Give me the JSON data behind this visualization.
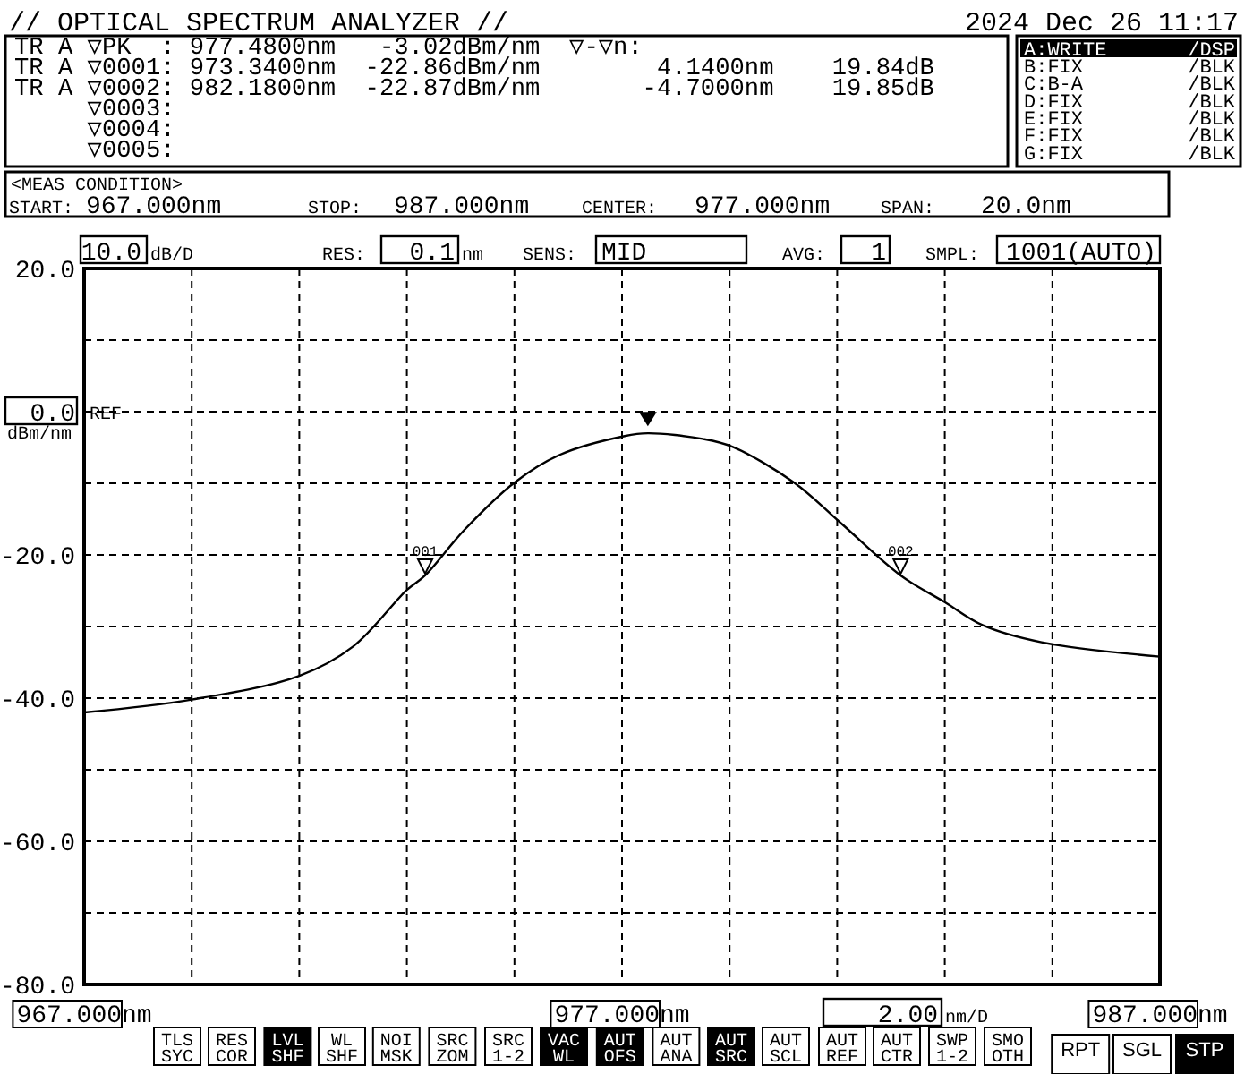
{
  "chart_data": {
    "type": "line",
    "title": "// OPTICAL SPECTRUM ANALYZER //",
    "ylabel": "dBm/nm",
    "x": [
      967,
      969,
      971,
      972,
      973,
      973.34,
      974.07,
      975,
      975.85,
      977.05,
      977.48,
      978.5,
      979.05,
      980.2,
      981.06,
      982.18,
      983,
      983.7,
      984.8,
      987
    ],
    "series": [
      {
        "color": "#000000",
        "values": [
          -42.0,
          -40.2,
          -36.9,
          -32.8,
          -24.9,
          -22.86,
          -16.5,
          -9.9,
          -6.0,
          -3.4,
          -3.02,
          -3.8,
          -4.9,
          -9.9,
          -15.5,
          -22.87,
          -26.6,
          -29.8,
          -32.2,
          -34.2
        ]
      }
    ],
    "xlim": [
      967,
      987
    ],
    "ylim": [
      -80,
      20
    ],
    "xticks": [
      {
        "value": 967,
        "label": "967.000nm"
      },
      {
        "value": 969,
        "label": null
      },
      {
        "value": 971,
        "label": null
      },
      {
        "value": 973,
        "label": null
      },
      {
        "value": 975,
        "label": null
      },
      {
        "value": 977,
        "label": "977.000nm"
      },
      {
        "value": 979,
        "label": null
      },
      {
        "value": 981,
        "label": null
      },
      {
        "value": 983,
        "label": null
      },
      {
        "value": 985,
        "label": null
      },
      {
        "value": 987,
        "label": "987.000nm"
      }
    ],
    "yticks": [
      {
        "value": 20,
        "label": "20.0"
      },
      {
        "value": 10,
        "label": null
      },
      {
        "value": 0,
        "label": "0.0"
      },
      {
        "value": -10,
        "label": null
      },
      {
        "value": -20,
        "label": "-20.0"
      },
      {
        "value": -30,
        "label": null
      },
      {
        "value": -40,
        "label": "-40.0"
      },
      {
        "value": -50,
        "label": null
      },
      {
        "value": -60,
        "label": "-60.0"
      },
      {
        "value": -70,
        "label": null
      },
      {
        "value": -80,
        "label": "-80.0"
      }
    ],
    "grid": true,
    "annotations": [
      "REF",
      "2024 Dec 26 11:17",
      "TR A ▽PK  : 977.4800nm   -3.02dBm/nm  ▽-▽n:",
      "TR A ▽0001: 973.3400nm  -22.86dBm/nm        4.1400nm    19.84dB",
      "TR A ▽0002: 982.1800nm  -22.87dBm/nm       -4.7000nm    19.85dB",
      "     ▽0003:",
      "     ▽0004:",
      "     ▽0005:",
      "A:WRITE /DSP",
      "B:FIX /BLK",
      "C:B-A /BLK",
      "D:FIX /BLK",
      "E:FIX /BLK",
      "F:FIX /BLK",
      "G:FIX /BLK",
      "<MEAS CONDITION>",
      "START:",
      "967.000nm",
      "STOP:",
      "987.000nm",
      "CENTER:",
      "977.000nm",
      "SPAN:",
      "20.0nm",
      "10.0",
      "dB/D",
      "RES:",
      "0.1",
      "nm",
      "SENS:",
      "MID",
      "AVG:",
      "1",
      "SMPL:",
      "1001(AUTO)",
      "2.00",
      "nm/D",
      "TLS SYC",
      "RES COR",
      "LVL SHF",
      "WL SHF",
      "NOI MSK",
      "SRC ZOM",
      "SRC 1-2",
      "VAC WL",
      "AUT OFS",
      "AUT ANA",
      "AUT SRC",
      "AUT SCL",
      "AUT REF",
      "AUT CTR",
      "SWP 1-2",
      "SMO OTH",
      "RPT",
      "SGL",
      "STP",
      {
        "text": "001",
        "x": 973.34,
        "y": -22.86
      },
      {
        "text": "002",
        "x": 982.18,
        "y": -22.87
      }
    ]
  }
}
